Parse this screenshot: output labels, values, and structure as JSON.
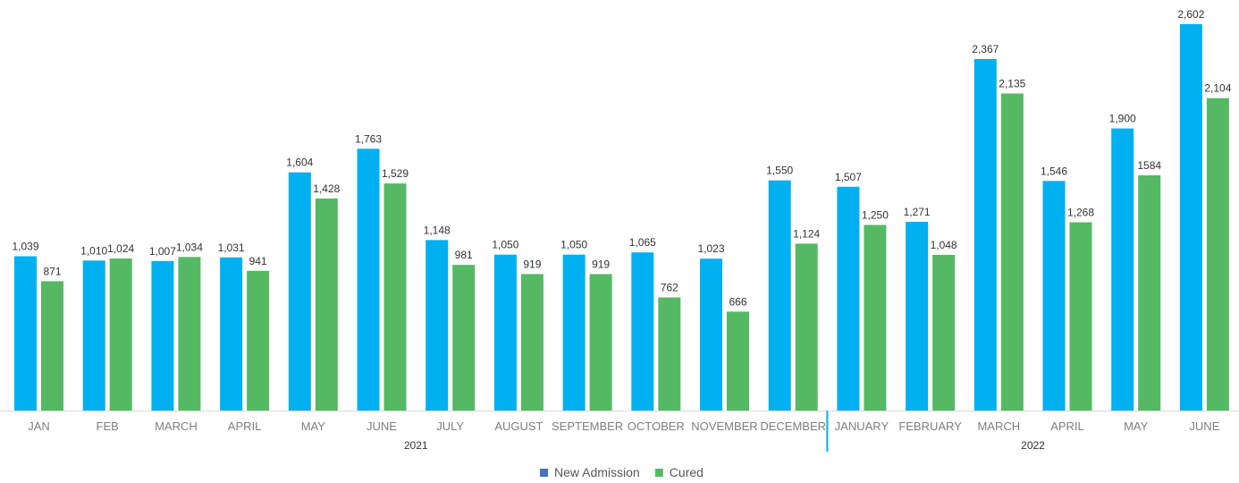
{
  "chart_data": {
    "type": "bar",
    "title": "",
    "xlabel": "",
    "ylabel": "",
    "ylim": [
      0,
      2602
    ],
    "grid": false,
    "legend_position": "bottom",
    "categories": [
      "JAN",
      "FEB",
      "MARCH",
      "APRIL",
      "MAY",
      "JUNE",
      "JULY",
      "AUGUST",
      "SEPTEMBER",
      "OCTOBER",
      "NOVEMBER",
      "DECEMBER",
      "JANUARY",
      "FEBRUARY",
      "MARCH",
      "APRIL",
      "MAY",
      "JUNE"
    ],
    "groups": [
      {
        "label": "2021",
        "count": 12
      },
      {
        "label": "2022",
        "count": 6
      }
    ],
    "series": [
      {
        "name": "New Admission",
        "color": "#00b0f0",
        "legend_color": "#4472c4",
        "values": [
          1039,
          1010,
          1007,
          1031,
          1604,
          1763,
          1148,
          1050,
          1050,
          1065,
          1023,
          1550,
          1507,
          1271,
          2367,
          1546,
          1900,
          2602
        ],
        "labels": [
          "1,039",
          "1,010",
          "1,007",
          "1,031",
          "1,604",
          "1,763",
          "1,148",
          "1,050",
          "1,050",
          "1,065",
          "1,023",
          "1,550",
          "1,507",
          "1,271",
          "2,367",
          "1,546",
          "1,900",
          "2,602"
        ]
      },
      {
        "name": "Cured",
        "color": "#55b964",
        "legend_color": "#55b964",
        "values": [
          871,
          1024,
          1034,
          941,
          1428,
          1529,
          981,
          919,
          919,
          762,
          666,
          1124,
          1250,
          1048,
          2135,
          1268,
          1584,
          2104
        ],
        "labels": [
          "871",
          "1,024",
          "1,034",
          "941",
          "1,428",
          "1,529",
          "981",
          "919",
          "919",
          "762",
          "666",
          "1,124",
          "1,250",
          "1,048",
          "2,135",
          "1,268",
          "1584",
          "2,104"
        ]
      }
    ]
  }
}
